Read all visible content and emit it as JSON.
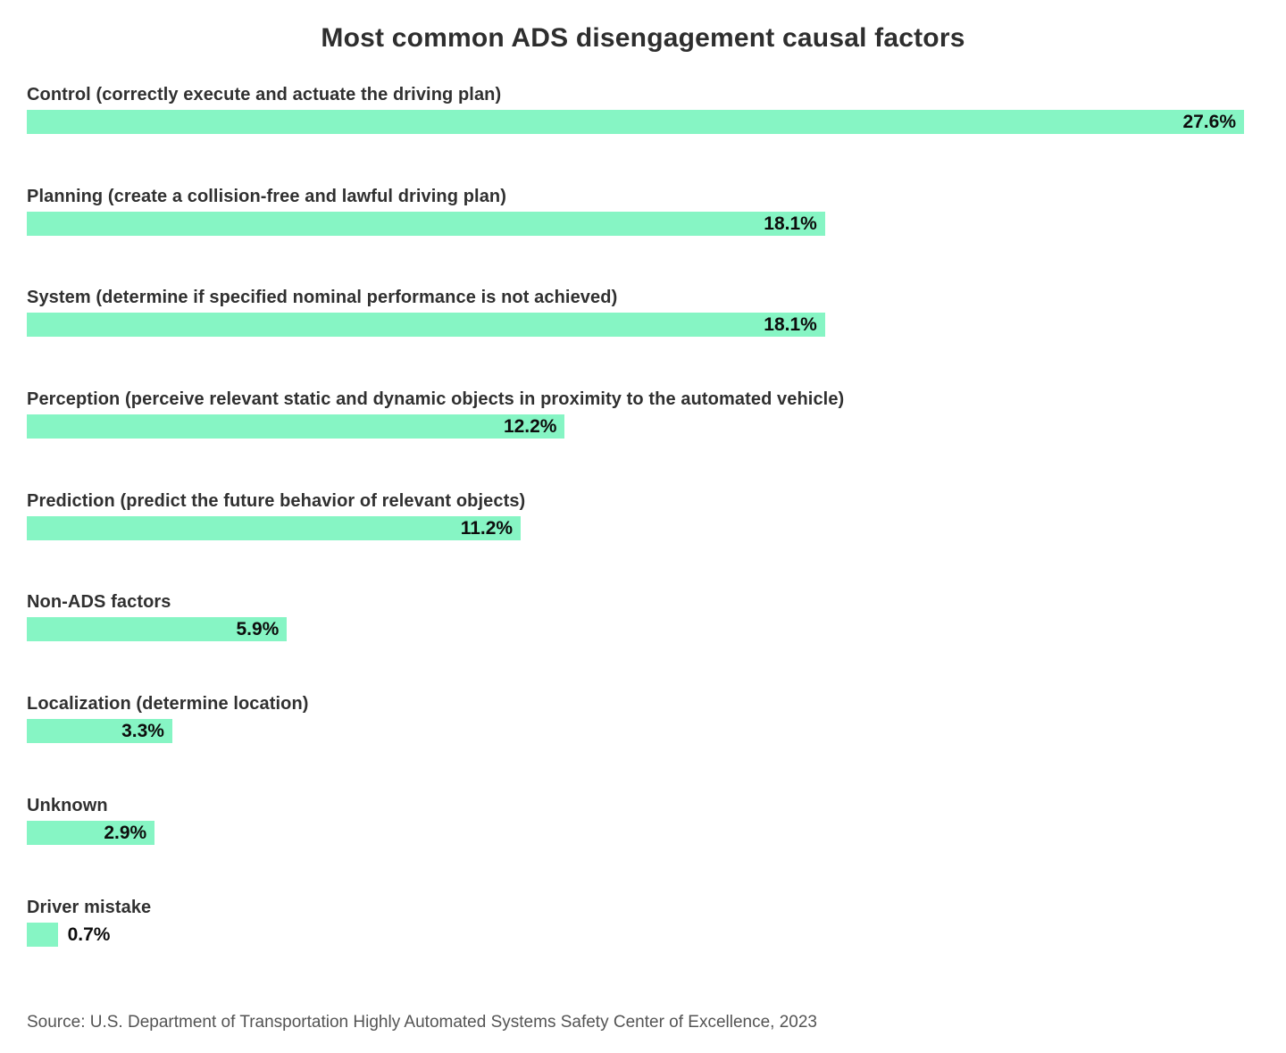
{
  "title": "Most common ADS disengagement causal factors",
  "source": "Source: U.S. Department of Transportation Highly Automated Systems Safety Center of Excellence, 2023",
  "colors": {
    "background": "#FFFFFF",
    "bar": "#86F5C4",
    "title": "#2E2E2E",
    "category_label": "#303030",
    "value_label": "#0D0D0D",
    "source_text": "#545454"
  },
  "chart_data": {
    "type": "bar",
    "orientation": "horizontal",
    "title": "Most common ADS disengagement causal factors",
    "xlabel": "",
    "ylabel": "",
    "xlim": [
      0,
      27.6
    ],
    "grid": false,
    "legend": false,
    "value_suffix": "%",
    "categories": [
      "Control (correctly execute and actuate the driving plan)",
      "Planning (create a collision-free and lawful driving plan)",
      "System (determine if specified nominal performance is not achieved)",
      "Perception (perceive relevant static and dynamic objects in proximity to the automated vehicle)",
      "Prediction (predict the future behavior of relevant objects)",
      "Non-ADS factors",
      "Localization (determine location)",
      "Unknown",
      "Driver mistake"
    ],
    "values": [
      27.6,
      18.1,
      18.1,
      12.2,
      11.2,
      5.9,
      3.3,
      2.9,
      0.7
    ],
    "value_labels": [
      "27.6%",
      "18.1%",
      "18.1%",
      "12.2%",
      "11.2%",
      "5.9%",
      "3.3%",
      "2.9%",
      "0.7%"
    ]
  }
}
